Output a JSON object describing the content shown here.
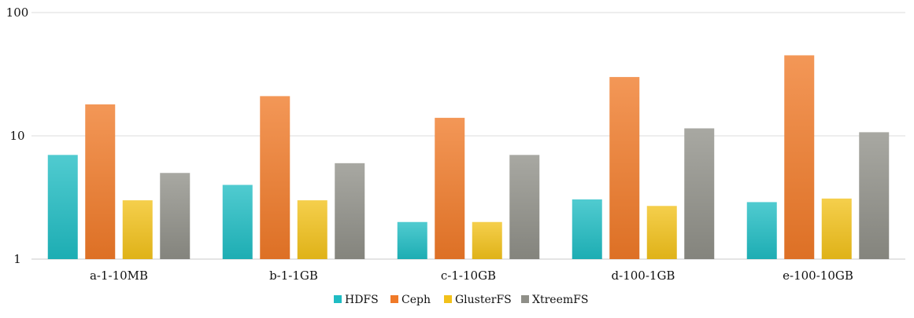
{
  "chart_data": {
    "type": "bar",
    "title": "",
    "xlabel": "",
    "ylabel": "",
    "yscale": "log",
    "ylim": [
      1,
      100
    ],
    "yticks": [
      "1",
      "10",
      "100"
    ],
    "grid": true,
    "legend_position": "bottom",
    "categories": [
      "a-1-10MB",
      "b-1-1GB",
      "c-1-10GB",
      "d-100-1GB",
      "e-100-10GB"
    ],
    "series": [
      {
        "name": "HDFS",
        "color": "#1fbcc3",
        "values": [
          7.0,
          4.0,
          2.0,
          3.05,
          2.9
        ]
      },
      {
        "name": "Ceph",
        "color": "#f07a28",
        "values": [
          18.0,
          21.0,
          14.0,
          30.0,
          45.0
        ]
      },
      {
        "name": "GlusterFS",
        "color": "#f2c11a",
        "values": [
          3.0,
          3.0,
          2.0,
          2.7,
          3.1
        ]
      },
      {
        "name": "XtreemFS",
        "color": "#8f8f88",
        "values": [
          5.0,
          6.0,
          7.0,
          11.5,
          10.7
        ]
      }
    ]
  }
}
